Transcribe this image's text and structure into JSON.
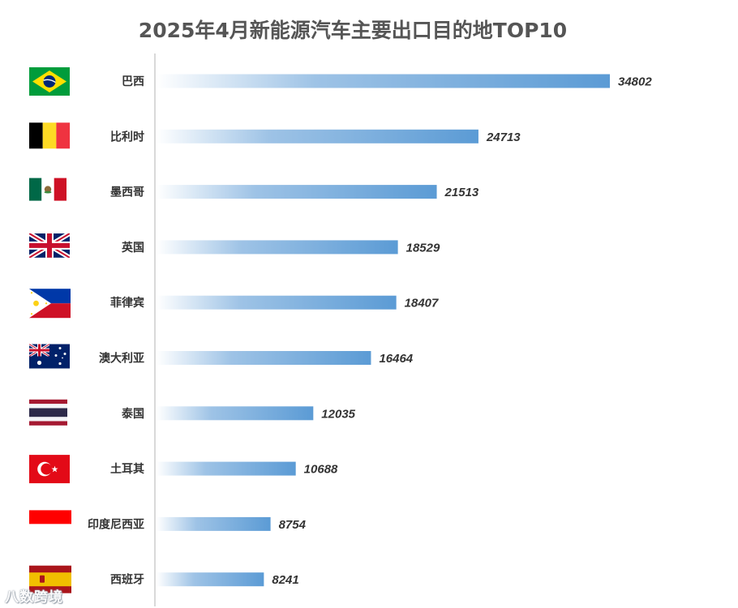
{
  "chart_data": {
    "type": "bar",
    "orientation": "horizontal",
    "title": "2025年4月新能源汽车主要出口目的地TOP10",
    "categories": [
      "巴西",
      "比利时",
      "墨西哥",
      "英国",
      "菲律宾",
      "澳大利亚",
      "泰国",
      "土耳其",
      "印度尼西亚",
      "西班牙"
    ],
    "values": [
      34802,
      24713,
      21513,
      18529,
      18407,
      16464,
      12035,
      10688,
      8754,
      8241
    ],
    "flags": [
      "brazil-flag-icon",
      "belgium-flag-icon",
      "mexico-flag-icon",
      "uk-flag-icon",
      "philippines-flag-icon",
      "australia-flag-icon",
      "thailand-flag-icon",
      "turkey-flag-icon",
      "indonesia-flag-icon",
      "spain-flag-icon"
    ],
    "bar_color_start": "#ffffff",
    "bar_color_end": "#5b9bd5",
    "data_labels": true,
    "grid": false,
    "legend": "none"
  },
  "watermark": "八数跨境"
}
